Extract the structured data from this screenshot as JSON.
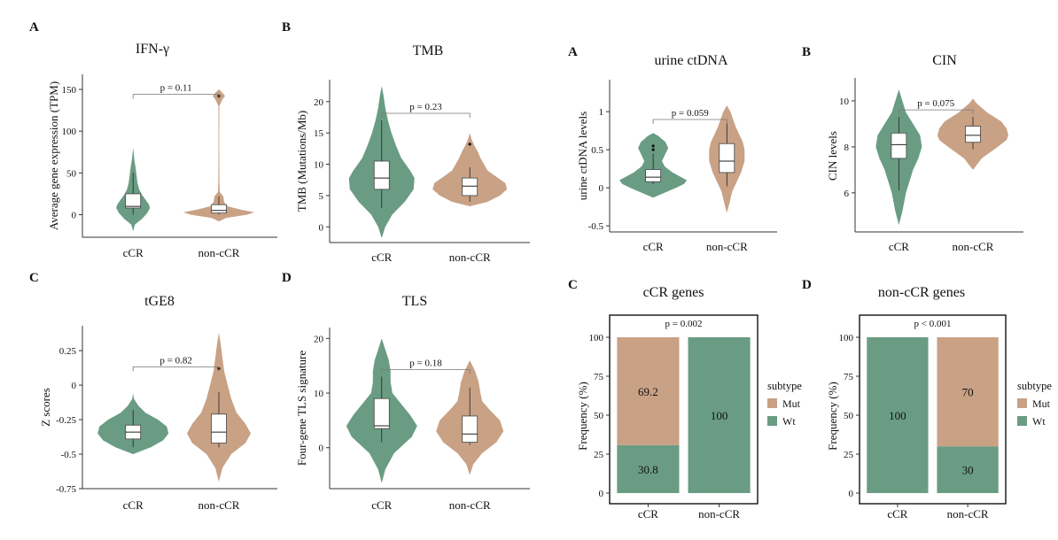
{
  "colors": {
    "green": "#6a9c83",
    "tan": "#c9a185",
    "box": "#ffffff",
    "axis": "#333333"
  },
  "chart_data": [
    {
      "type": "violin",
      "letter": "A",
      "title": "IFN-γ",
      "ylabel": "Average gene expression (TPM)",
      "categories": [
        "cCR",
        "non-cCR"
      ],
      "yticks": [
        0,
        50,
        100,
        150
      ],
      "ylim": [
        -27,
        168
      ],
      "pvalue": "p = 0.11",
      "groups": [
        {
          "name": "cCR",
          "color": "green",
          "min": 0,
          "q1": 8,
          "median": 10,
          "q3": 25,
          "max": 50,
          "outliers": [],
          "violin": [
            [
              -20,
              0
            ],
            [
              -12,
              2
            ],
            [
              -5,
              10
            ],
            [
              2,
              16
            ],
            [
              8,
              19
            ],
            [
              12,
              18
            ],
            [
              18,
              14
            ],
            [
              24,
              10
            ],
            [
              30,
              7
            ],
            [
              38,
              5
            ],
            [
              46,
              4
            ],
            [
              55,
              3
            ],
            [
              65,
              1.5
            ],
            [
              80,
              0
            ]
          ]
        },
        {
          "name": "non-cCR",
          "color": "tan",
          "min": 0,
          "q1": 2,
          "median": 5,
          "q3": 12,
          "max": 22,
          "outliers": [
            142
          ],
          "violin": [
            [
              -8,
              0
            ],
            [
              -4,
              8
            ],
            [
              0,
              32
            ],
            [
              3,
              40
            ],
            [
              6,
              25
            ],
            [
              10,
              10
            ],
            [
              15,
              6
            ],
            [
              22,
              5
            ],
            [
              27,
              1
            ],
            [
              40,
              0.6
            ],
            [
              80,
              0.4
            ],
            [
              130,
              0.5
            ],
            [
              138,
              4
            ],
            [
              142,
              7
            ],
            [
              146,
              4
            ],
            [
              150,
              0
            ]
          ]
        }
      ]
    },
    {
      "type": "violin",
      "letter": "B",
      "title": "TMB",
      "ylabel": "TMB (Mutations/Mb)",
      "categories": [
        "cCR",
        "non-cCR"
      ],
      "yticks": [
        0,
        5,
        10,
        15,
        20
      ],
      "ylim": [
        -2.5,
        23.5
      ],
      "pvalue": "p = 0.23",
      "groups": [
        {
          "name": "cCR",
          "color": "green",
          "min": 3,
          "q1": 6,
          "median": 7.8,
          "q3": 10.5,
          "max": 17,
          "outliers": [],
          "violin": [
            [
              -1.8,
              0
            ],
            [
              0,
              4
            ],
            [
              2,
              12
            ],
            [
              4,
              26
            ],
            [
              6,
              36
            ],
            [
              7.8,
              37
            ],
            [
              9,
              32
            ],
            [
              11,
              22
            ],
            [
              13,
              16
            ],
            [
              15,
              11
            ],
            [
              17,
              7
            ],
            [
              19,
              4
            ],
            [
              21,
              2
            ],
            [
              22.5,
              0
            ]
          ]
        },
        {
          "name": "non-cCR",
          "color": "tan",
          "min": 4,
          "q1": 5,
          "median": 6.5,
          "q3": 7.8,
          "max": 9.5,
          "outliers": [
            13.2
          ],
          "violin": [
            [
              3.3,
              0
            ],
            [
              4,
              20
            ],
            [
              5,
              34
            ],
            [
              6,
              42
            ],
            [
              7,
              40
            ],
            [
              8,
              30
            ],
            [
              9,
              20
            ],
            [
              10,
              16
            ],
            [
              11,
              12
            ],
            [
              12,
              9
            ],
            [
              13,
              5
            ],
            [
              14,
              2
            ],
            [
              15,
              0
            ]
          ]
        }
      ]
    },
    {
      "type": "violin",
      "letter": "A",
      "title": "urine ctDNA",
      "ylabel": "urine ctDNA levels",
      "categories": [
        "cCR",
        "non-cCR"
      ],
      "yticks": [
        -0.5,
        0.0,
        0.5,
        1.0
      ],
      "ylim": [
        -0.58,
        1.42
      ],
      "pvalue": "p = 0.059",
      "groups": [
        {
          "name": "cCR",
          "color": "green",
          "min": 0.05,
          "q1": 0.08,
          "median": 0.14,
          "q3": 0.24,
          "max": 0.45,
          "outliers": [
            0.55,
            0.5
          ],
          "violin": [
            [
              -0.13,
              0
            ],
            [
              -0.08,
              10
            ],
            [
              0,
              26
            ],
            [
              0.05,
              35
            ],
            [
              0.1,
              38
            ],
            [
              0.15,
              30
            ],
            [
              0.2,
              22
            ],
            [
              0.28,
              13
            ],
            [
              0.35,
              10
            ],
            [
              0.45,
              14
            ],
            [
              0.52,
              17
            ],
            [
              0.6,
              14
            ],
            [
              0.68,
              6
            ],
            [
              0.72,
              0
            ]
          ]
        },
        {
          "name": "non-cCR",
          "color": "tan",
          "min": 0.02,
          "q1": 0.2,
          "median": 0.35,
          "q3": 0.58,
          "max": 0.85,
          "outliers": [],
          "violin": [
            [
              -0.33,
              0
            ],
            [
              -0.2,
              3
            ],
            [
              -0.05,
              6
            ],
            [
              0.1,
              12
            ],
            [
              0.2,
              16
            ],
            [
              0.35,
              20
            ],
            [
              0.5,
              20
            ],
            [
              0.6,
              18
            ],
            [
              0.7,
              14
            ],
            [
              0.8,
              10
            ],
            [
              0.9,
              7
            ],
            [
              1.0,
              4
            ],
            [
              1.08,
              0
            ]
          ]
        }
      ]
    },
    {
      "type": "violin",
      "letter": "B",
      "title": "CIN",
      "ylabel": "CIN levels",
      "categories": [
        "cCR",
        "non-cCR"
      ],
      "yticks": [
        6,
        8,
        10
      ],
      "ylim": [
        4.3,
        11.0
      ],
      "pvalue": "p = 0.075",
      "groups": [
        {
          "name": "cCR",
          "color": "green",
          "min": 6.1,
          "q1": 7.5,
          "median": 8.1,
          "q3": 8.6,
          "max": 9.3,
          "outliers": [],
          "violin": [
            [
              4.6,
              0
            ],
            [
              5.2,
              4
            ],
            [
              6,
              8
            ],
            [
              6.5,
              12
            ],
            [
              7,
              16
            ],
            [
              7.5,
              22
            ],
            [
              8,
              26
            ],
            [
              8.5,
              24
            ],
            [
              9,
              16
            ],
            [
              9.5,
              8
            ],
            [
              10,
              4
            ],
            [
              10.5,
              0
            ]
          ]
        },
        {
          "name": "non-cCR",
          "color": "tan",
          "min": 7.9,
          "q1": 8.2,
          "median": 8.5,
          "q3": 8.9,
          "max": 9.3,
          "outliers": [],
          "violin": [
            [
              7.0,
              0
            ],
            [
              7.5,
              10
            ],
            [
              8,
              28
            ],
            [
              8.3,
              38
            ],
            [
              8.5,
              40
            ],
            [
              8.8,
              38
            ],
            [
              9.1,
              32
            ],
            [
              9.5,
              16
            ],
            [
              9.9,
              4
            ],
            [
              10.1,
              0
            ]
          ]
        }
      ]
    },
    {
      "type": "violin",
      "letter": "C",
      "title": "tGE8",
      "ylabel": "Z scores",
      "categories": [
        "cCR",
        "non-cCR"
      ],
      "yticks": [
        -0.75,
        -0.5,
        -0.25,
        0.0,
        0.25
      ],
      "ylim": [
        -0.75,
        0.43
      ],
      "pvalue": "p = 0.82",
      "groups": [
        {
          "name": "cCR",
          "color": "green",
          "min": -0.45,
          "q1": -0.39,
          "median": -0.34,
          "q3": -0.29,
          "max": -0.18,
          "outliers": [],
          "violin": [
            [
              -0.5,
              0
            ],
            [
              -0.45,
              20
            ],
            [
              -0.4,
              34
            ],
            [
              -0.35,
              40
            ],
            [
              -0.3,
              38
            ],
            [
              -0.25,
              28
            ],
            [
              -0.2,
              14
            ],
            [
              -0.15,
              6
            ],
            [
              -0.1,
              1
            ],
            [
              -0.06,
              0
            ]
          ]
        },
        {
          "name": "non-cCR",
          "color": "tan",
          "min": -0.45,
          "q1": -0.42,
          "median": -0.34,
          "q3": -0.21,
          "max": -0.05,
          "outliers": [
            0.12
          ],
          "violin": [
            [
              -0.7,
              0
            ],
            [
              -0.6,
              4
            ],
            [
              -0.5,
              14
            ],
            [
              -0.42,
              30
            ],
            [
              -0.35,
              36
            ],
            [
              -0.28,
              30
            ],
            [
              -0.2,
              20
            ],
            [
              -0.1,
              14
            ],
            [
              0,
              10
            ],
            [
              0.1,
              6
            ],
            [
              0.2,
              4
            ],
            [
              0.3,
              2
            ],
            [
              0.38,
              0
            ]
          ]
        }
      ]
    },
    {
      "type": "violin",
      "letter": "D",
      "title": "TLS",
      "ylabel": "Four-gene TLS signature",
      "categories": [
        "cCR",
        "non-cCR"
      ],
      "yticks": [
        0,
        10,
        20
      ],
      "ylim": [
        -7.5,
        22
      ],
      "pvalue": "p = 0.18",
      "groups": [
        {
          "name": "cCR",
          "color": "green",
          "min": 1,
          "q1": 3.5,
          "median": 4,
          "q3": 9,
          "max": 13,
          "outliers": [],
          "violin": [
            [
              -6.5,
              0
            ],
            [
              -4,
              4
            ],
            [
              -1,
              14
            ],
            [
              2,
              34
            ],
            [
              4,
              40
            ],
            [
              6,
              32
            ],
            [
              8,
              22
            ],
            [
              10,
              12
            ],
            [
              12,
              10
            ],
            [
              14,
              10
            ],
            [
              16,
              8
            ],
            [
              18,
              4
            ],
            [
              20,
              0
            ]
          ]
        },
        {
          "name": "non-cCR",
          "color": "tan",
          "min": 0.5,
          "q1": 1,
          "median": 2.5,
          "q3": 5.8,
          "max": 11,
          "outliers": [],
          "violin": [
            [
              -5,
              0
            ],
            [
              -3,
              4
            ],
            [
              -1,
              14
            ],
            [
              1,
              30
            ],
            [
              3,
              38
            ],
            [
              5,
              34
            ],
            [
              7,
              22
            ],
            [
              8.5,
              14
            ],
            [
              10,
              12
            ],
            [
              12,
              10
            ],
            [
              14,
              6
            ],
            [
              16,
              0
            ]
          ]
        }
      ]
    },
    {
      "type": "bar",
      "stacked": true,
      "letter": "C",
      "title": "cCR genes",
      "ylabel": "Frequency (%)",
      "categories": [
        "cCR",
        "non-cCR"
      ],
      "yticks": [
        0,
        25,
        50,
        75,
        100
      ],
      "ylim": [
        0,
        100
      ],
      "pvalue": "p = 0.002",
      "series": [
        {
          "name": "Wt",
          "color": "green",
          "values": [
            30.8,
            100
          ],
          "labels": [
            "30.8",
            "100"
          ]
        },
        {
          "name": "Mut",
          "color": "tan",
          "values": [
            69.2,
            0
          ],
          "labels": [
            "69.2",
            ""
          ]
        }
      ],
      "legend": {
        "title": "subtype",
        "items": [
          "Mut",
          "Wt"
        ]
      }
    },
    {
      "type": "bar",
      "stacked": true,
      "letter": "D",
      "title": "non-cCR genes",
      "ylabel": "Frequency (%)",
      "categories": [
        "cCR",
        "non-cCR"
      ],
      "yticks": [
        0,
        25,
        50,
        75,
        100
      ],
      "ylim": [
        0,
        100
      ],
      "pvalue": "p < 0.001",
      "series": [
        {
          "name": "Wt",
          "color": "green",
          "values": [
            100,
            30
          ],
          "labels": [
            "100",
            "30"
          ]
        },
        {
          "name": "Mut",
          "color": "tan",
          "values": [
            0,
            70
          ],
          "labels": [
            "",
            "70"
          ]
        }
      ],
      "legend": {
        "title": "subtype",
        "items": [
          "Mut",
          "Wt"
        ]
      }
    }
  ]
}
